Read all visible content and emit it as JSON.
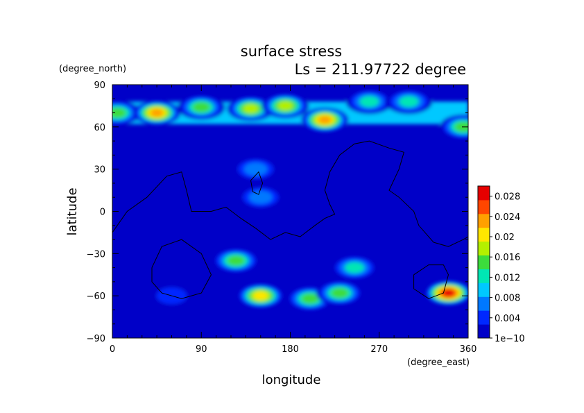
{
  "chart_data": {
    "type": "heatmap",
    "title": "surface stress",
    "subtitle": "Ls = 211.97722 degree",
    "xlabel": "longitude",
    "ylabel": "latitude",
    "xunit": "(degree_east)",
    "yunit": "(degree_north)",
    "xlim": [
      0,
      360
    ],
    "ylim": [
      -90,
      90
    ],
    "xticks": [
      "0",
      "90",
      "180",
      "270",
      "360"
    ],
    "yticks": [
      "90",
      "60",
      "30",
      "0",
      "−30",
      "−60",
      "−90"
    ],
    "colorbar": {
      "ticks": [
        "0.028",
        "0.024",
        "0.02",
        "0.016",
        "0.012",
        "0.008",
        "0.004",
        "1e−10"
      ],
      "range": [
        0,
        0.03
      ],
      "colormap": [
        "#0000c8",
        "#0028ff",
        "#0078ff",
        "#00c8ff",
        "#00e6b4",
        "#3cdc3c",
        "#b4f000",
        "#ffe600",
        "#ffa000",
        "#ff4600",
        "#e60000"
      ]
    },
    "background_value": 0.002,
    "hotspots": [
      {
        "lon": 5,
        "lat": 70,
        "value": 0.014
      },
      {
        "lon": 45,
        "lat": 70,
        "value": 0.024
      },
      {
        "lon": 90,
        "lat": 74,
        "value": 0.013
      },
      {
        "lon": 140,
        "lat": 73,
        "value": 0.016
      },
      {
        "lon": 175,
        "lat": 75,
        "value": 0.017
      },
      {
        "lon": 215,
        "lat": 65,
        "value": 0.024
      },
      {
        "lon": 260,
        "lat": 78,
        "value": 0.012
      },
      {
        "lon": 300,
        "lat": 78,
        "value": 0.012
      },
      {
        "lon": 355,
        "lat": 60,
        "value": 0.014
      },
      {
        "lon": 145,
        "lat": 30,
        "value": 0.008
      },
      {
        "lon": 150,
        "lat": 10,
        "value": 0.009
      },
      {
        "lon": 125,
        "lat": -35,
        "value": 0.013
      },
      {
        "lon": 150,
        "lat": -60,
        "value": 0.019
      },
      {
        "lon": 200,
        "lat": -62,
        "value": 0.014
      },
      {
        "lon": 230,
        "lat": -58,
        "value": 0.013
      },
      {
        "lon": 245,
        "lat": -40,
        "value": 0.01
      },
      {
        "lon": 340,
        "lat": -58,
        "value": 0.028
      },
      {
        "lon": 60,
        "lat": -60,
        "value": 0.006
      }
    ],
    "contours": [
      [
        [
          0,
          -15
        ],
        [
          15,
          0
        ],
        [
          35,
          10
        ],
        [
          55,
          25
        ],
        [
          70,
          28
        ],
        [
          75,
          15
        ],
        [
          80,
          0
        ],
        [
          100,
          0
        ],
        [
          115,
          3
        ],
        [
          130,
          -5
        ],
        [
          145,
          -12
        ],
        [
          160,
          -20
        ],
        [
          175,
          -15
        ],
        [
          190,
          -18
        ],
        [
          205,
          -10
        ],
        [
          215,
          -5
        ],
        [
          225,
          -2
        ],
        [
          220,
          5
        ],
        [
          215,
          15
        ],
        [
          220,
          28
        ],
        [
          230,
          40
        ],
        [
          245,
          48
        ],
        [
          260,
          50
        ],
        [
          280,
          45
        ],
        [
          295,
          42
        ],
        [
          290,
          30
        ],
        [
          280,
          15
        ],
        [
          290,
          10
        ],
        [
          305,
          0
        ],
        [
          310,
          -10
        ],
        [
          325,
          -22
        ],
        [
          340,
          -25
        ],
        [
          355,
          -20
        ],
        [
          360,
          -18
        ]
      ],
      [
        [
          140,
          22
        ],
        [
          148,
          28
        ],
        [
          152,
          20
        ],
        [
          148,
          12
        ],
        [
          142,
          14
        ],
        [
          140,
          22
        ]
      ],
      [
        [
          40,
          -40
        ],
        [
          50,
          -25
        ],
        [
          70,
          -20
        ],
        [
          90,
          -30
        ],
        [
          100,
          -45
        ],
        [
          90,
          -58
        ],
        [
          70,
          -62
        ],
        [
          50,
          -58
        ],
        [
          40,
          -50
        ],
        [
          40,
          -40
        ]
      ],
      [
        [
          305,
          -45
        ],
        [
          320,
          -38
        ],
        [
          335,
          -38
        ],
        [
          340,
          -45
        ],
        [
          335,
          -58
        ],
        [
          320,
          -62
        ],
        [
          305,
          -55
        ],
        [
          305,
          -45
        ]
      ]
    ]
  }
}
